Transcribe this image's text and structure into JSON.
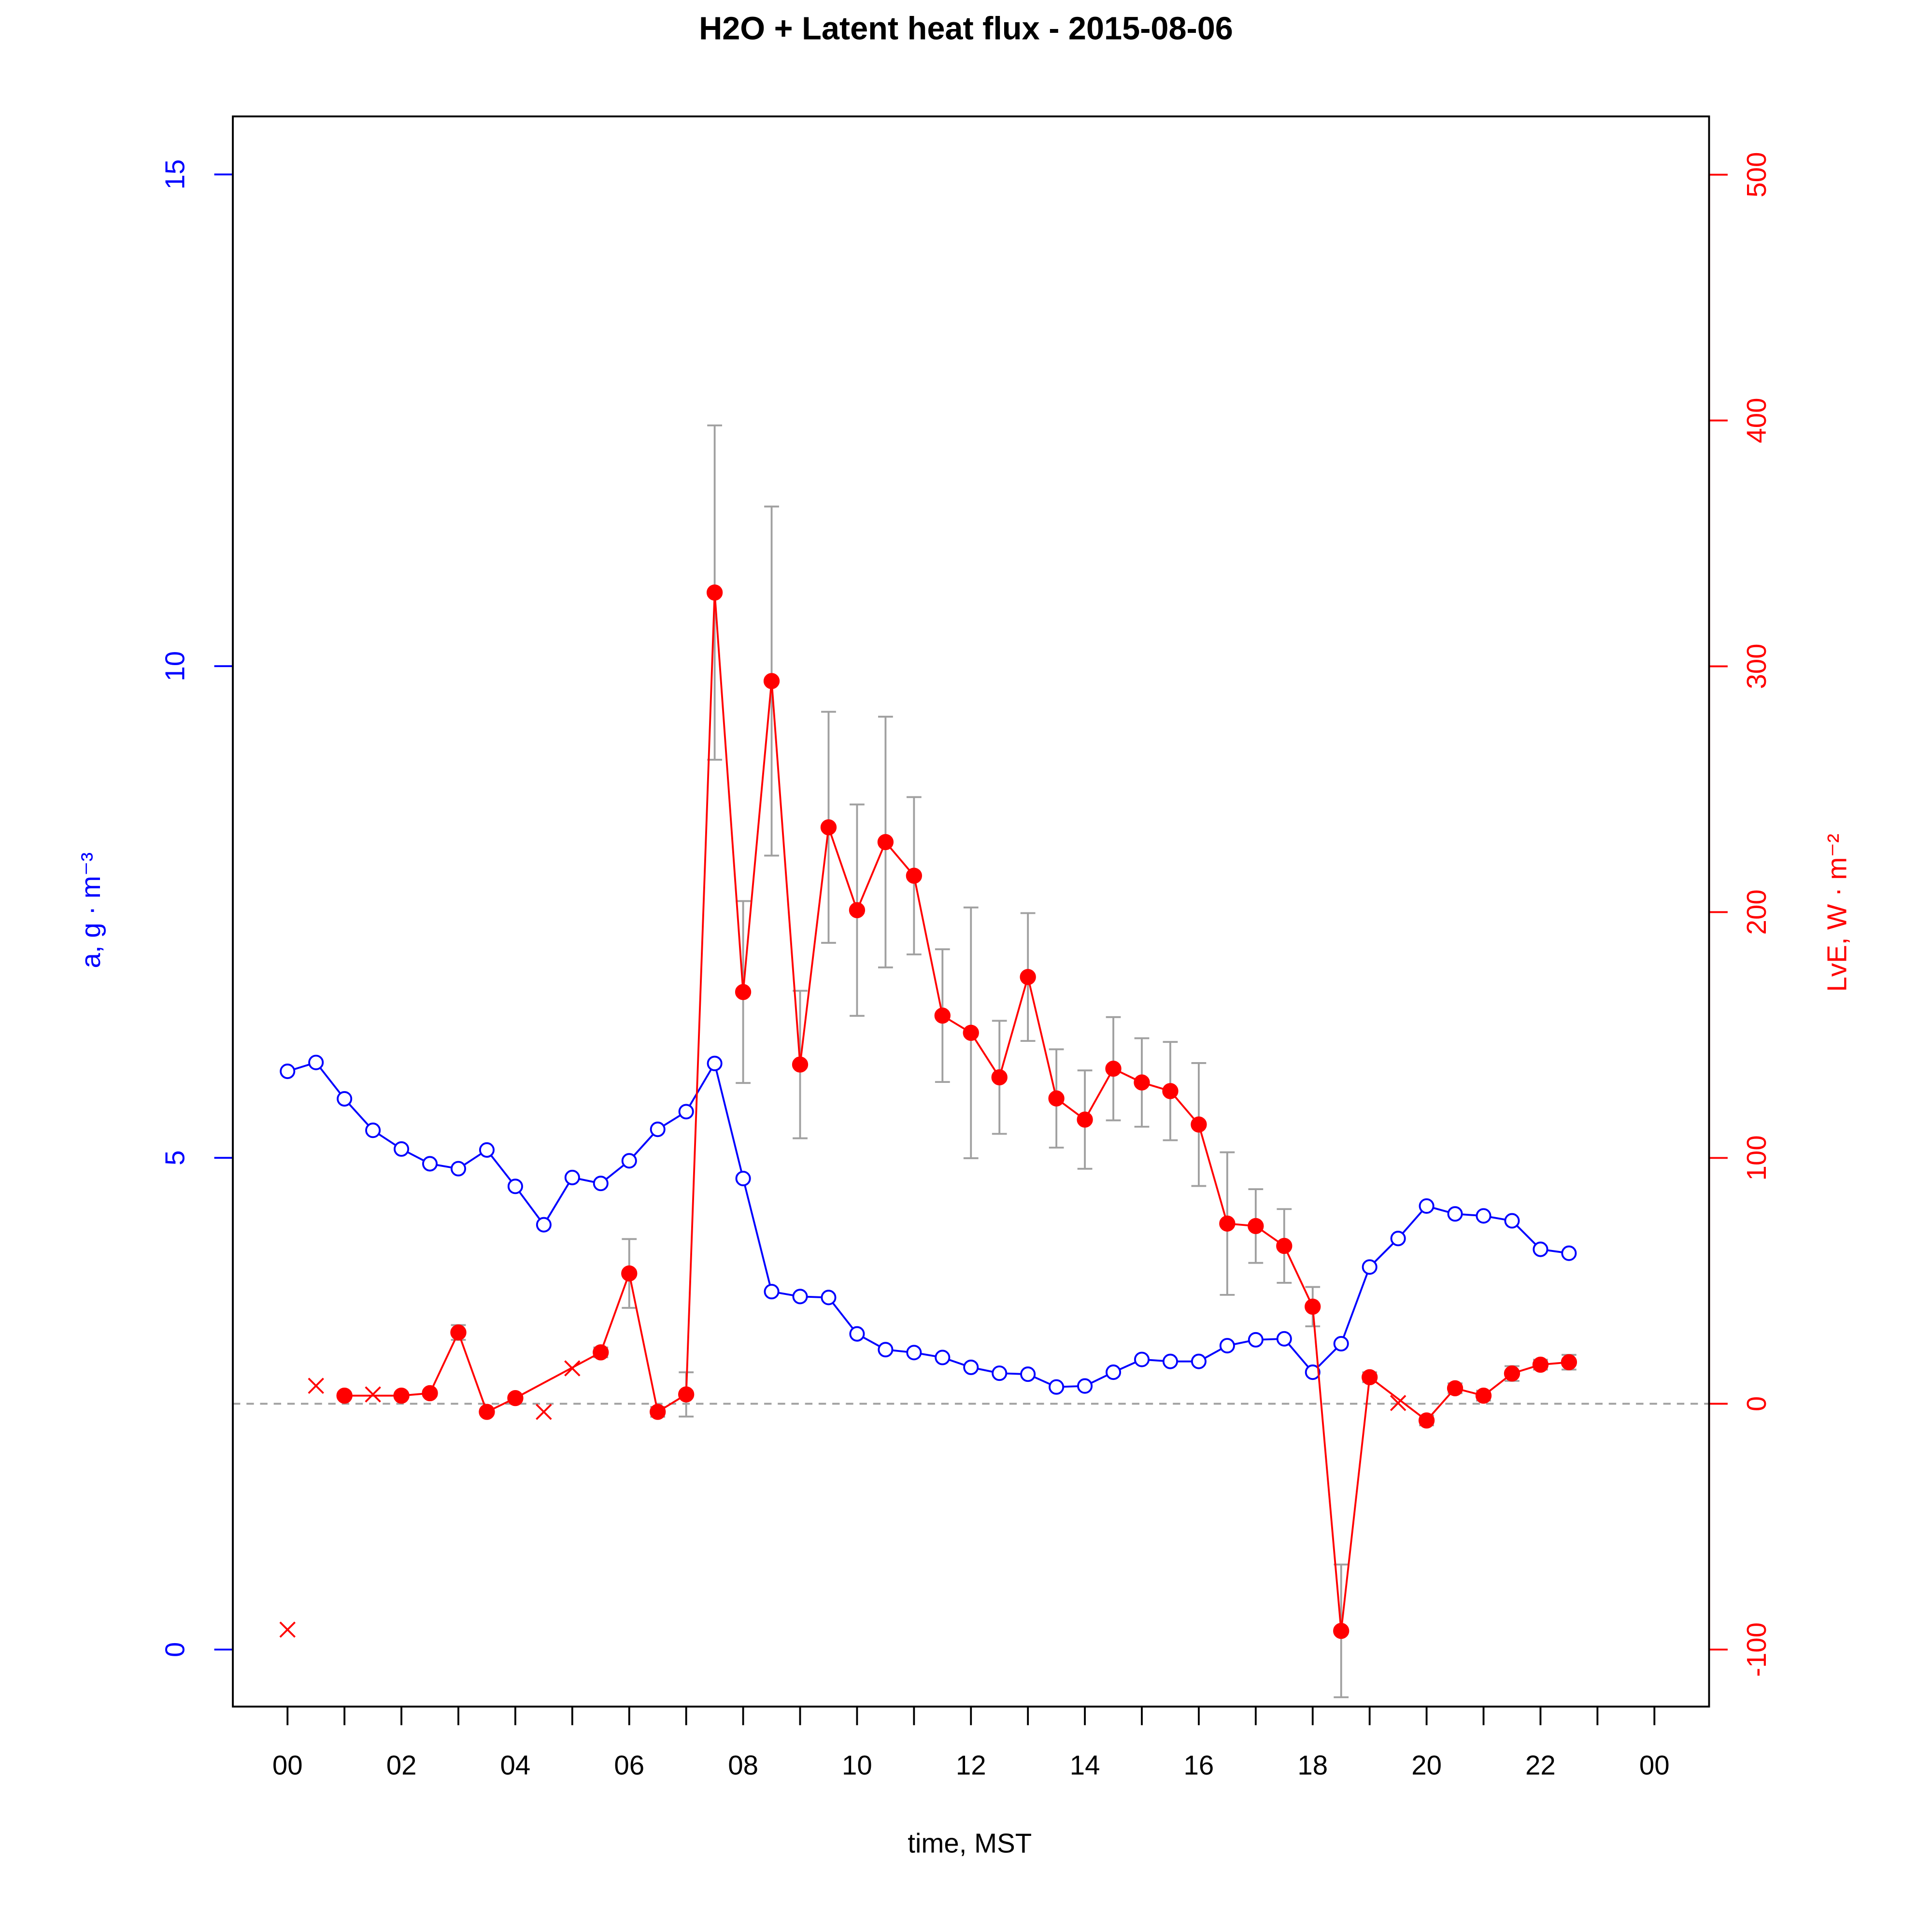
{
  "chart_data": {
    "type": "line",
    "title": "H2O + Latent heat flux -  2015-08-06",
    "xlabel": "time, MST",
    "ylabel": "a, g · m⁻³",
    "y2label": "LvE, W · m⁻²",
    "xlim": [
      -0.96,
      24.96
    ],
    "ylim": [
      -0.58,
      15.59
    ],
    "y2lim": [
      -123.2,
      523.7
    ],
    "xticks": [
      {
        "value": 0,
        "label": "00"
      },
      {
        "value": 2,
        "label": "02"
      },
      {
        "value": 4,
        "label": "04"
      },
      {
        "value": 6,
        "label": "06"
      },
      {
        "value": 8,
        "label": "08"
      },
      10,
      12,
      14,
      16,
      18,
      20,
      22,
      {
        "value": 24,
        "label": "00"
      }
    ],
    "xminorticks": [
      1,
      3,
      5,
      7,
      9,
      11,
      13,
      15,
      17,
      19,
      21,
      23
    ],
    "yticks": [
      0,
      5,
      10,
      15
    ],
    "y2ticks": [
      -100,
      0,
      100,
      200,
      300,
      400,
      500
    ],
    "reference_line": {
      "value": 0,
      "axis": "y2",
      "color": "#a0a0a0"
    },
    "error_color": "#a0a0a0",
    "series": [
      {
        "color": "#0000ff",
        "marker": "open-circle",
        "line": true,
        "x": [
          0,
          0.5,
          1,
          1.5,
          2,
          2.5,
          3,
          3.5,
          4,
          4.5,
          5,
          5.5,
          6,
          6.5,
          7,
          7.5,
          8,
          8.5,
          9,
          9.5,
          10,
          10.5,
          11,
          11.5,
          12,
          12.5,
          13,
          13.5,
          14,
          14.5,
          15,
          15.5,
          16,
          16.5,
          17,
          17.5,
          18,
          18.5,
          19,
          19.5,
          20,
          20.5,
          21,
          21.5,
          22,
          22.5
        ],
        "values": [
          5.88,
          5.97,
          5.6,
          5.28,
          5.09,
          4.94,
          4.89,
          5.08,
          4.71,
          4.32,
          4.8,
          4.74,
          4.97,
          5.29,
          5.47,
          5.96,
          4.79,
          3.64,
          3.59,
          3.58,
          3.21,
          3.05,
          3.02,
          2.97,
          2.87,
          2.81,
          2.8,
          2.67,
          2.68,
          2.82,
          2.95,
          2.93,
          2.93,
          3.09,
          3.15,
          3.16,
          2.82,
          3.11,
          3.89,
          4.18,
          4.51,
          4.43,
          4.41,
          4.36,
          4.07,
          4.03
        ]
      },
      {
        "color": "#ff0000",
        "marker": "filled-circle",
        "line": true,
        "axis": "y2",
        "x": [
          1,
          2,
          2.5,
          3,
          3.5,
          4,
          5.5,
          6,
          6.5,
          7,
          7.5,
          8,
          8.5,
          9,
          9.5,
          10,
          10.5,
          11,
          11.5,
          12,
          12.5,
          13,
          13.5,
          14,
          14.5,
          15,
          15.5,
          16,
          16.5,
          17,
          17.5,
          18,
          18.5,
          19,
          20,
          20.5,
          21,
          21.5,
          22,
          22.5
        ],
        "values": [
          3.3,
          3.3,
          4.3,
          29,
          -3.3,
          2.3,
          20.9,
          53,
          -3.3,
          3.8,
          330,
          167.5,
          294,
          138,
          234.5,
          200.8,
          228.5,
          214.8,
          157.9,
          150.9,
          132.8,
          173.6,
          124.2,
          115.6,
          136.3,
          130.7,
          127.2,
          113.6,
          73.3,
          72.3,
          64.2,
          39.5,
          -92.4,
          10.8,
          -6.8,
          6.3,
          3.3,
          12.3,
          15.9,
          16.9
        ],
        "errors": [
          0.5,
          0.5,
          1,
          3,
          1,
          1,
          2,
          14,
          2,
          9,
          68,
          37,
          71,
          30,
          47,
          43,
          51,
          32,
          27,
          51,
          23,
          26,
          20,
          20,
          21,
          18,
          20,
          25,
          29,
          15,
          15,
          8,
          27,
          2,
          2,
          2,
          2,
          3,
          2,
          3
        ]
      },
      {
        "color": "#ff0000",
        "marker": "cross",
        "line": false,
        "axis": "y2",
        "x": [
          0,
          0.5,
          1.5,
          4.5,
          5,
          19.5
        ],
        "values": [
          -91.9,
          7.3,
          3.8,
          -3.3,
          14.4,
          0.3
        ]
      }
    ]
  }
}
